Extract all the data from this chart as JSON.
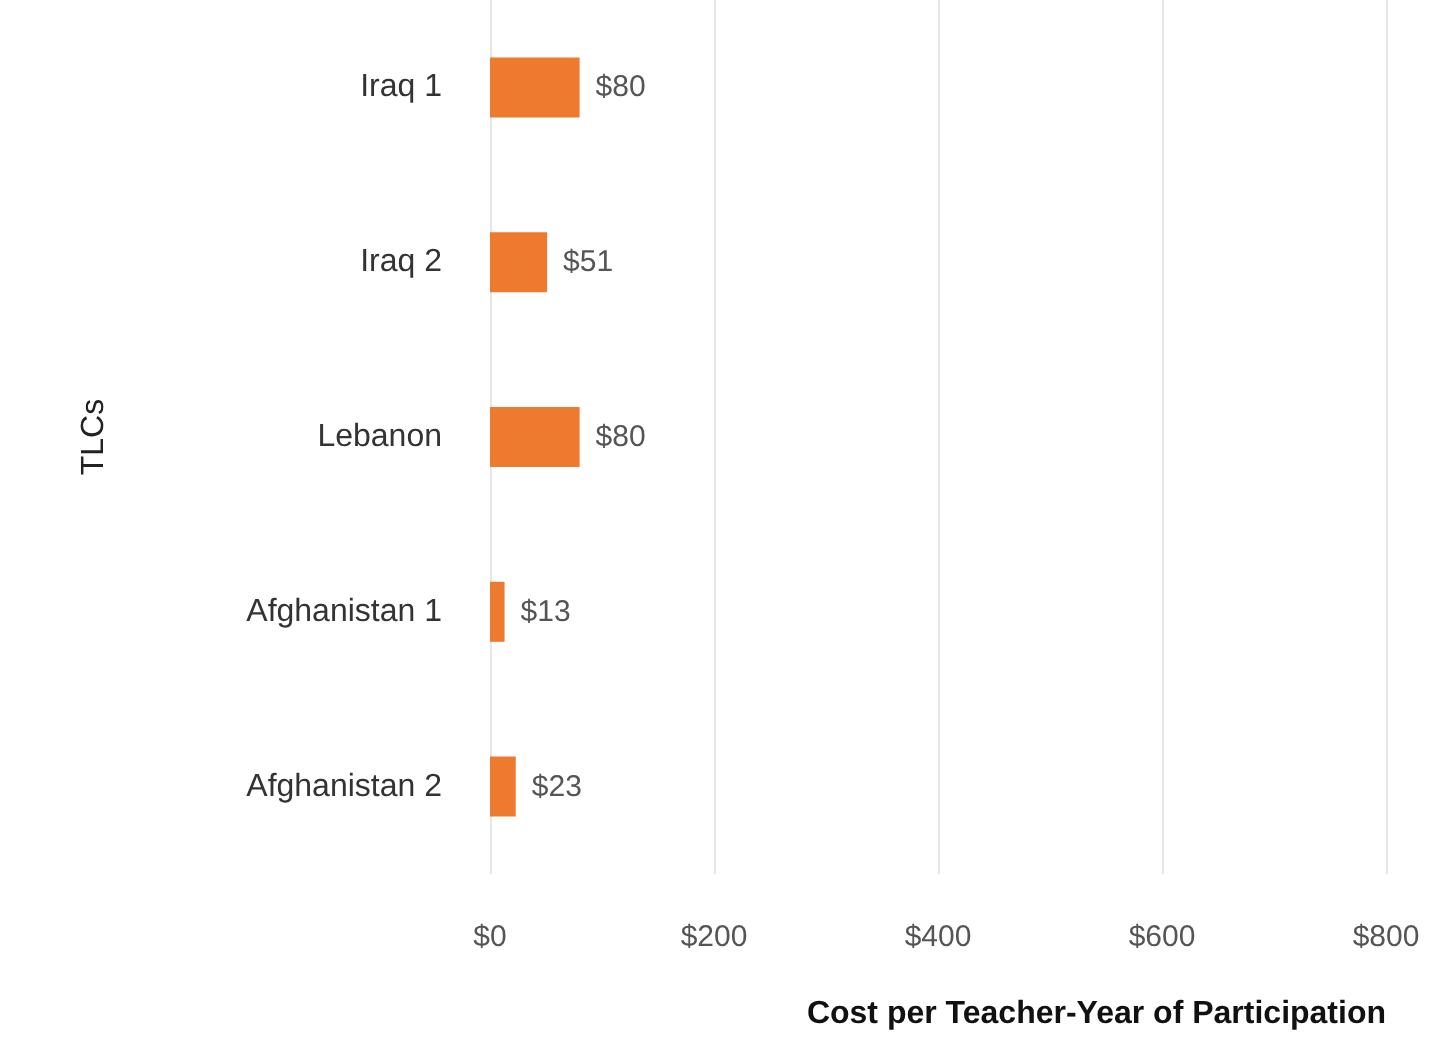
{
  "chart_data": {
    "type": "bar",
    "orientation": "horizontal",
    "xlabel": "Cost per Teacher-Year of Participation",
    "ylabel": "TLCs",
    "categories": [
      "Iraq 1",
      "Iraq 2",
      "Lebanon",
      "Afghanistan 1",
      "Afghanistan 2"
    ],
    "values": [
      80,
      51,
      80,
      13,
      23
    ],
    "value_labels": [
      "$80",
      "$51",
      "$80",
      "$13",
      "$23"
    ],
    "color": "#ee7a30",
    "xlim": [
      0,
      800
    ],
    "xticks": [
      {
        "value": 0,
        "label": "$0"
      },
      {
        "value": 200,
        "label": "$200"
      },
      {
        "value": 400,
        "label": "$400"
      },
      {
        "value": 600,
        "label": "$600"
      },
      {
        "value": 800,
        "label": "$800"
      }
    ],
    "grid": "x"
  }
}
